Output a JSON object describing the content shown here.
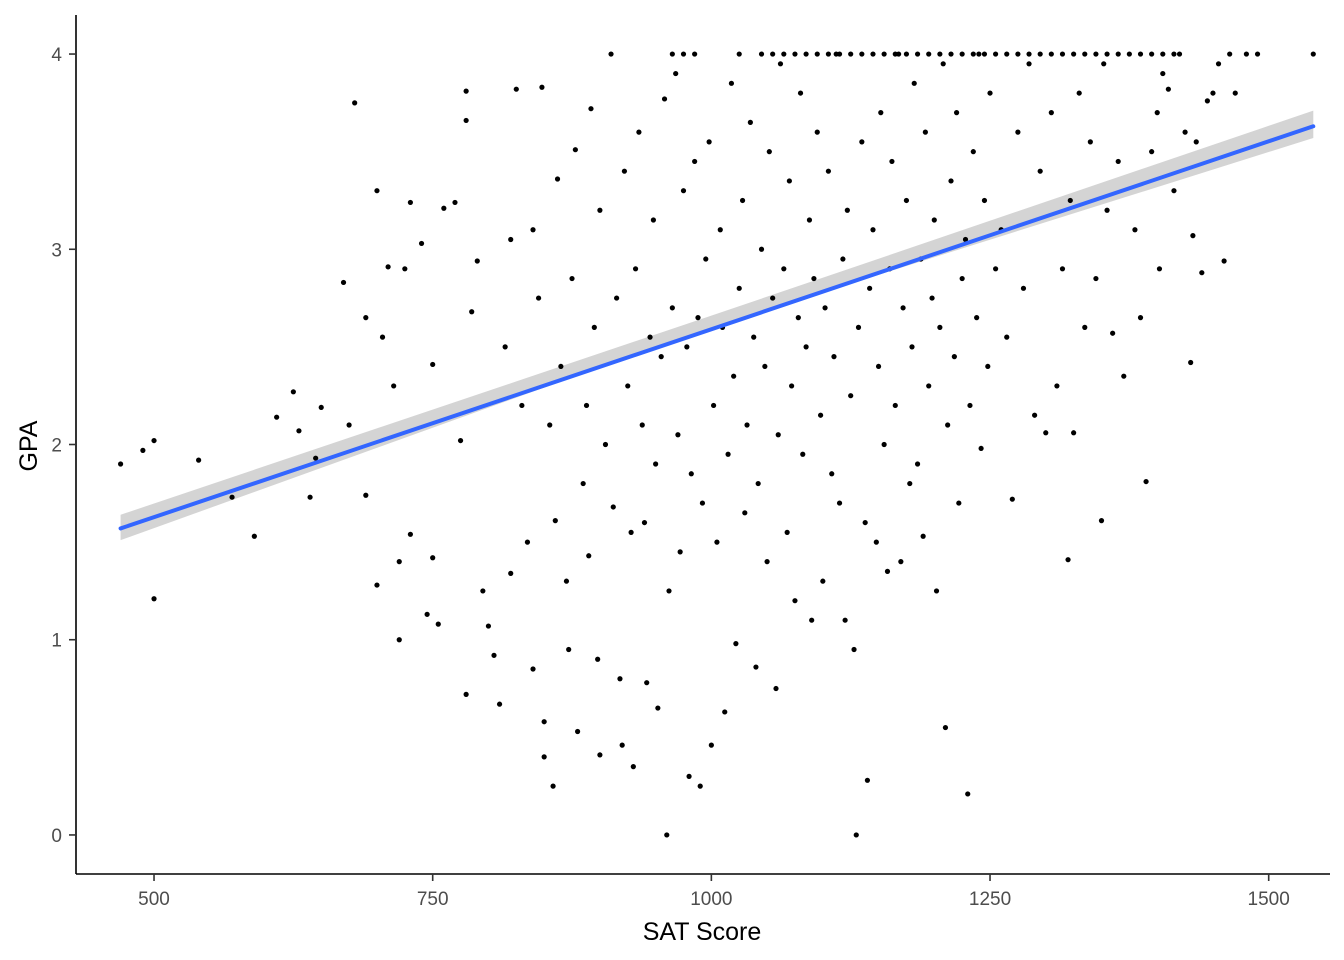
{
  "chart_data": {
    "type": "scatter",
    "title": "",
    "xlabel": "SAT Score",
    "ylabel": "GPA",
    "xlim": [
      430,
      1555
    ],
    "ylim": [
      -0.2,
      4.2
    ],
    "x_ticks": [
      500,
      750,
      1000,
      1250,
      1500
    ],
    "y_ticks": [
      0,
      1,
      2,
      3,
      4
    ],
    "x_tick_labels": [
      "500",
      "750",
      "1000",
      "1250",
      "1500"
    ],
    "y_tick_labels": [
      "0",
      "1",
      "2",
      "3",
      "4"
    ],
    "grid": false,
    "legend": "none",
    "colors": {
      "points": "#000000",
      "trend_line": "#3366ff",
      "confidence_band": "#cccccc"
    },
    "points": [
      [
        470,
        1.9
      ],
      [
        490,
        1.97
      ],
      [
        500,
        2.02
      ],
      [
        500,
        1.21
      ],
      [
        540,
        1.92
      ],
      [
        570,
        1.73
      ],
      [
        590,
        1.53
      ],
      [
        610,
        2.14
      ],
      [
        625,
        2.27
      ],
      [
        630,
        2.07
      ],
      [
        640,
        1.73
      ],
      [
        645,
        1.93
      ],
      [
        650,
        2.19
      ],
      [
        670,
        2.83
      ],
      [
        675,
        2.1
      ],
      [
        680,
        3.75
      ],
      [
        690,
        2.65
      ],
      [
        690,
        1.74
      ],
      [
        700,
        3.3
      ],
      [
        700,
        1.28
      ],
      [
        705,
        2.55
      ],
      [
        710,
        2.91
      ],
      [
        715,
        2.3
      ],
      [
        720,
        1.4
      ],
      [
        720,
        1.0
      ],
      [
        725,
        2.9
      ],
      [
        730,
        3.24
      ],
      [
        730,
        1.54
      ],
      [
        740,
        3.03
      ],
      [
        745,
        1.13
      ],
      [
        750,
        2.41
      ],
      [
        750,
        1.42
      ],
      [
        755,
        1.08
      ],
      [
        760,
        3.21
      ],
      [
        770,
        3.24
      ],
      [
        775,
        2.02
      ],
      [
        780,
        3.81
      ],
      [
        780,
        3.66
      ],
      [
        780,
        0.72
      ],
      [
        785,
        2.68
      ],
      [
        790,
        2.94
      ],
      [
        795,
        1.25
      ],
      [
        800,
        1.07
      ],
      [
        805,
        0.92
      ],
      [
        810,
        0.67
      ],
      [
        815,
        2.5
      ],
      [
        820,
        3.05
      ],
      [
        820,
        1.34
      ],
      [
        825,
        3.82
      ],
      [
        830,
        2.2
      ],
      [
        835,
        1.5
      ],
      [
        840,
        0.85
      ],
      [
        840,
        3.1
      ],
      [
        845,
        2.75
      ],
      [
        848,
        3.83
      ],
      [
        850,
        0.58
      ],
      [
        850,
        0.4
      ],
      [
        855,
        2.1
      ],
      [
        858,
        0.25
      ],
      [
        860,
        1.61
      ],
      [
        862,
        3.36
      ],
      [
        865,
        2.4
      ],
      [
        870,
        1.3
      ],
      [
        872,
        0.95
      ],
      [
        875,
        2.85
      ],
      [
        878,
        3.51
      ],
      [
        880,
        0.53
      ],
      [
        885,
        1.8
      ],
      [
        888,
        2.2
      ],
      [
        890,
        1.43
      ],
      [
        892,
        3.72
      ],
      [
        895,
        2.6
      ],
      [
        898,
        0.9
      ],
      [
        900,
        0.41
      ],
      [
        900,
        3.2
      ],
      [
        905,
        2.0
      ],
      [
        910,
        4.0
      ],
      [
        912,
        1.68
      ],
      [
        915,
        2.75
      ],
      [
        918,
        0.8
      ],
      [
        920,
        0.46
      ],
      [
        922,
        3.4
      ],
      [
        925,
        2.3
      ],
      [
        928,
        1.55
      ],
      [
        930,
        0.35
      ],
      [
        932,
        2.9
      ],
      [
        935,
        3.6
      ],
      [
        938,
        2.1
      ],
      [
        940,
        1.6
      ],
      [
        942,
        0.78
      ],
      [
        945,
        2.55
      ],
      [
        948,
        3.15
      ],
      [
        950,
        1.9
      ],
      [
        952,
        0.65
      ],
      [
        955,
        2.45
      ],
      [
        958,
        3.77
      ],
      [
        960,
        0.0
      ],
      [
        962,
        1.25
      ],
      [
        965,
        2.7
      ],
      [
        968,
        3.9
      ],
      [
        970,
        2.05
      ],
      [
        972,
        1.45
      ],
      [
        975,
        3.3
      ],
      [
        978,
        2.5
      ],
      [
        980,
        0.3
      ],
      [
        982,
        1.85
      ],
      [
        985,
        3.45
      ],
      [
        988,
        2.65
      ],
      [
        990,
        0.25
      ],
      [
        992,
        1.7
      ],
      [
        995,
        2.95
      ],
      [
        998,
        3.55
      ],
      [
        1000,
        0.46
      ],
      [
        1002,
        2.2
      ],
      [
        1005,
        1.5
      ],
      [
        1008,
        3.1
      ],
      [
        1010,
        2.6
      ],
      [
        1012,
        0.63
      ],
      [
        1015,
        1.95
      ],
      [
        1018,
        3.85
      ],
      [
        1020,
        2.35
      ],
      [
        1022,
        0.98
      ],
      [
        1025,
        2.8
      ],
      [
        1028,
        3.25
      ],
      [
        1030,
        1.65
      ],
      [
        1032,
        2.1
      ],
      [
        1035,
        3.65
      ],
      [
        1038,
        2.55
      ],
      [
        1040,
        0.86
      ],
      [
        1042,
        1.8
      ],
      [
        1045,
        3.0
      ],
      [
        1048,
        2.4
      ],
      [
        1050,
        1.4
      ],
      [
        1052,
        3.5
      ],
      [
        1055,
        2.75
      ],
      [
        1058,
        0.75
      ],
      [
        1060,
        2.05
      ],
      [
        1062,
        3.95
      ],
      [
        1065,
        2.9
      ],
      [
        1068,
        1.55
      ],
      [
        1070,
        3.35
      ],
      [
        1072,
        2.3
      ],
      [
        1075,
        1.2
      ],
      [
        1078,
        2.65
      ],
      [
        1080,
        3.8
      ],
      [
        1082,
        1.95
      ],
      [
        1085,
        2.5
      ],
      [
        1088,
        3.15
      ],
      [
        1090,
        1.1
      ],
      [
        1092,
        2.85
      ],
      [
        1095,
        3.6
      ],
      [
        1098,
        2.15
      ],
      [
        1100,
        1.3
      ],
      [
        1102,
        2.7
      ],
      [
        1105,
        3.4
      ],
      [
        1108,
        1.85
      ],
      [
        1110,
        2.45
      ],
      [
        1112,
        4.0
      ],
      [
        1115,
        1.7
      ],
      [
        1118,
        2.95
      ],
      [
        1120,
        1.1
      ],
      [
        1122,
        3.2
      ],
      [
        1125,
        2.25
      ],
      [
        1128,
        0.95
      ],
      [
        1130,
        0.0
      ],
      [
        1132,
        2.6
      ],
      [
        1135,
        3.55
      ],
      [
        1138,
        1.6
      ],
      [
        1140,
        0.28
      ],
      [
        1142,
        2.8
      ],
      [
        1145,
        3.1
      ],
      [
        1148,
        1.5
      ],
      [
        1150,
        2.4
      ],
      [
        1152,
        3.7
      ],
      [
        1155,
        2.0
      ],
      [
        1158,
        1.35
      ],
      [
        1160,
        2.9
      ],
      [
        1162,
        3.45
      ],
      [
        1165,
        2.2
      ],
      [
        1168,
        4.0
      ],
      [
        1170,
        1.4
      ],
      [
        1172,
        2.7
      ],
      [
        1175,
        3.25
      ],
      [
        1178,
        1.8
      ],
      [
        1180,
        2.5
      ],
      [
        1182,
        3.85
      ],
      [
        1185,
        1.9
      ],
      [
        1188,
        2.95
      ],
      [
        1190,
        1.53
      ],
      [
        1192,
        3.6
      ],
      [
        1195,
        2.3
      ],
      [
        1198,
        2.75
      ],
      [
        1200,
        3.15
      ],
      [
        1202,
        1.25
      ],
      [
        1205,
        2.6
      ],
      [
        1208,
        3.95
      ],
      [
        1210,
        0.55
      ],
      [
        1212,
        2.1
      ],
      [
        1215,
        3.35
      ],
      [
        1218,
        2.45
      ],
      [
        1220,
        3.7
      ],
      [
        1222,
        1.7
      ],
      [
        1225,
        2.85
      ],
      [
        1228,
        3.05
      ],
      [
        1230,
        0.21
      ],
      [
        1232,
        2.2
      ],
      [
        1235,
        3.5
      ],
      [
        1238,
        2.65
      ],
      [
        1240,
        4.0
      ],
      [
        1242,
        1.98
      ],
      [
        1245,
        3.25
      ],
      [
        1248,
        2.4
      ],
      [
        1250,
        3.8
      ],
      [
        1255,
        2.9
      ],
      [
        1260,
        3.1
      ],
      [
        1265,
        2.55
      ],
      [
        1270,
        1.72
      ],
      [
        1275,
        3.6
      ],
      [
        1280,
        2.8
      ],
      [
        1285,
        3.95
      ],
      [
        1290,
        2.15
      ],
      [
        1295,
        3.4
      ],
      [
        1300,
        2.06
      ],
      [
        1305,
        3.7
      ],
      [
        1310,
        2.3
      ],
      [
        1315,
        2.9
      ],
      [
        1320,
        1.41
      ],
      [
        1322,
        3.25
      ],
      [
        1325,
        2.06
      ],
      [
        1330,
        3.8
      ],
      [
        1335,
        2.6
      ],
      [
        1340,
        3.55
      ],
      [
        1345,
        2.85
      ],
      [
        1350,
        1.61
      ],
      [
        1352,
        3.95
      ],
      [
        1355,
        3.2
      ],
      [
        1360,
        2.57
      ],
      [
        1365,
        3.45
      ],
      [
        1370,
        2.35
      ],
      [
        1375,
        4.0
      ],
      [
        1380,
        3.1
      ],
      [
        1385,
        2.65
      ],
      [
        1390,
        1.81
      ],
      [
        1395,
        3.5
      ],
      [
        1400,
        3.7
      ],
      [
        1402,
        2.9
      ],
      [
        1405,
        3.9
      ],
      [
        1410,
        3.82
      ],
      [
        1415,
        3.3
      ],
      [
        1420,
        4.0
      ],
      [
        1425,
        3.6
      ],
      [
        1430,
        2.42
      ],
      [
        1432,
        3.07
      ],
      [
        1435,
        3.55
      ],
      [
        1440,
        2.88
      ],
      [
        1445,
        3.76
      ],
      [
        1450,
        3.8
      ],
      [
        1460,
        2.94
      ],
      [
        1470,
        3.8
      ],
      [
        1480,
        4.0
      ],
      [
        1490,
        4.0
      ],
      [
        1540,
        4.0
      ],
      [
        1455,
        3.95
      ],
      [
        1465,
        4.0
      ],
      [
        1395,
        4.0
      ],
      [
        1365,
        4.0
      ],
      [
        1345,
        4.0
      ],
      [
        1325,
        4.0
      ],
      [
        1305,
        4.0
      ],
      [
        1285,
        4.0
      ],
      [
        1265,
        4.0
      ],
      [
        1245,
        4.0
      ],
      [
        1225,
        4.0
      ],
      [
        1205,
        4.0
      ],
      [
        1185,
        4.0
      ],
      [
        1165,
        4.0
      ],
      [
        1145,
        4.0
      ],
      [
        1125,
        4.0
      ],
      [
        1105,
        4.0
      ],
      [
        1085,
        4.0
      ],
      [
        1065,
        4.0
      ],
      [
        1045,
        4.0
      ],
      [
        1025,
        4.0
      ],
      [
        965,
        4.0
      ],
      [
        975,
        4.0
      ],
      [
        985,
        4.0
      ],
      [
        1055,
        4.0
      ],
      [
        1075,
        4.0
      ],
      [
        1095,
        4.0
      ],
      [
        1115,
        4.0
      ],
      [
        1135,
        4.0
      ],
      [
        1155,
        4.0
      ],
      [
        1175,
        4.0
      ],
      [
        1195,
        4.0
      ],
      [
        1215,
        4.0
      ],
      [
        1235,
        4.0
      ],
      [
        1255,
        4.0
      ],
      [
        1275,
        4.0
      ],
      [
        1295,
        4.0
      ],
      [
        1315,
        4.0
      ],
      [
        1335,
        4.0
      ],
      [
        1355,
        4.0
      ],
      [
        1385,
        4.0
      ],
      [
        1405,
        4.0
      ],
      [
        1415,
        4.0
      ]
    ],
    "trend_line": {
      "x": [
        470,
        1540
      ],
      "y": [
        1.57,
        3.63
      ]
    },
    "confidence_band": {
      "x": [
        470,
        1000,
        1540
      ],
      "lower": [
        1.51,
        2.6,
        3.57
      ],
      "upper": [
        1.64,
        2.66,
        3.71
      ]
    }
  }
}
